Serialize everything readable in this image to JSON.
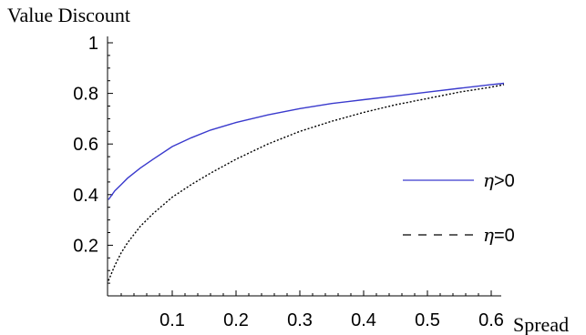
{
  "chart_data": {
    "type": "line",
    "title": "",
    "ylabel": "Value Discount",
    "xlabel": "Spread",
    "xlim": [
      0,
      0.62
    ],
    "ylim": [
      0,
      1.0
    ],
    "x_ticks": [
      "0.1",
      "0.2",
      "0.3",
      "0.4",
      "0.5",
      "0.6"
    ],
    "x_tick_values": [
      0.1,
      0.2,
      0.3,
      0.4,
      0.5,
      0.6
    ],
    "y_ticks": [
      "0.2",
      "0.4",
      "0.6",
      "0.8",
      "1"
    ],
    "y_tick_values": [
      0.2,
      0.4,
      0.6,
      0.8,
      1.0
    ],
    "grid": false,
    "legend_position": "right",
    "series": [
      {
        "name": "η>0",
        "symbol": "η",
        "relation": ">0",
        "color": "#3a3acd",
        "dash": "solid",
        "x": [
          0.0,
          0.01,
          0.02,
          0.03,
          0.05,
          0.07,
          0.1,
          0.13,
          0.16,
          0.2,
          0.25,
          0.3,
          0.35,
          0.4,
          0.45,
          0.5,
          0.55,
          0.6,
          0.62
        ],
        "y": [
          0.38,
          0.415,
          0.44,
          0.465,
          0.505,
          0.54,
          0.59,
          0.625,
          0.655,
          0.685,
          0.715,
          0.74,
          0.76,
          0.775,
          0.79,
          0.805,
          0.82,
          0.835,
          0.84
        ]
      },
      {
        "name": "η=0",
        "symbol": "η",
        "relation": "=0",
        "color": "#000000",
        "dash": "dashed",
        "x": [
          0.0,
          0.01,
          0.02,
          0.03,
          0.05,
          0.07,
          0.1,
          0.13,
          0.16,
          0.2,
          0.25,
          0.3,
          0.35,
          0.4,
          0.45,
          0.5,
          0.55,
          0.6,
          0.62
        ],
        "y": [
          0.06,
          0.12,
          0.17,
          0.21,
          0.275,
          0.325,
          0.39,
          0.44,
          0.485,
          0.54,
          0.6,
          0.65,
          0.69,
          0.725,
          0.755,
          0.78,
          0.805,
          0.825,
          0.835
        ]
      }
    ]
  }
}
